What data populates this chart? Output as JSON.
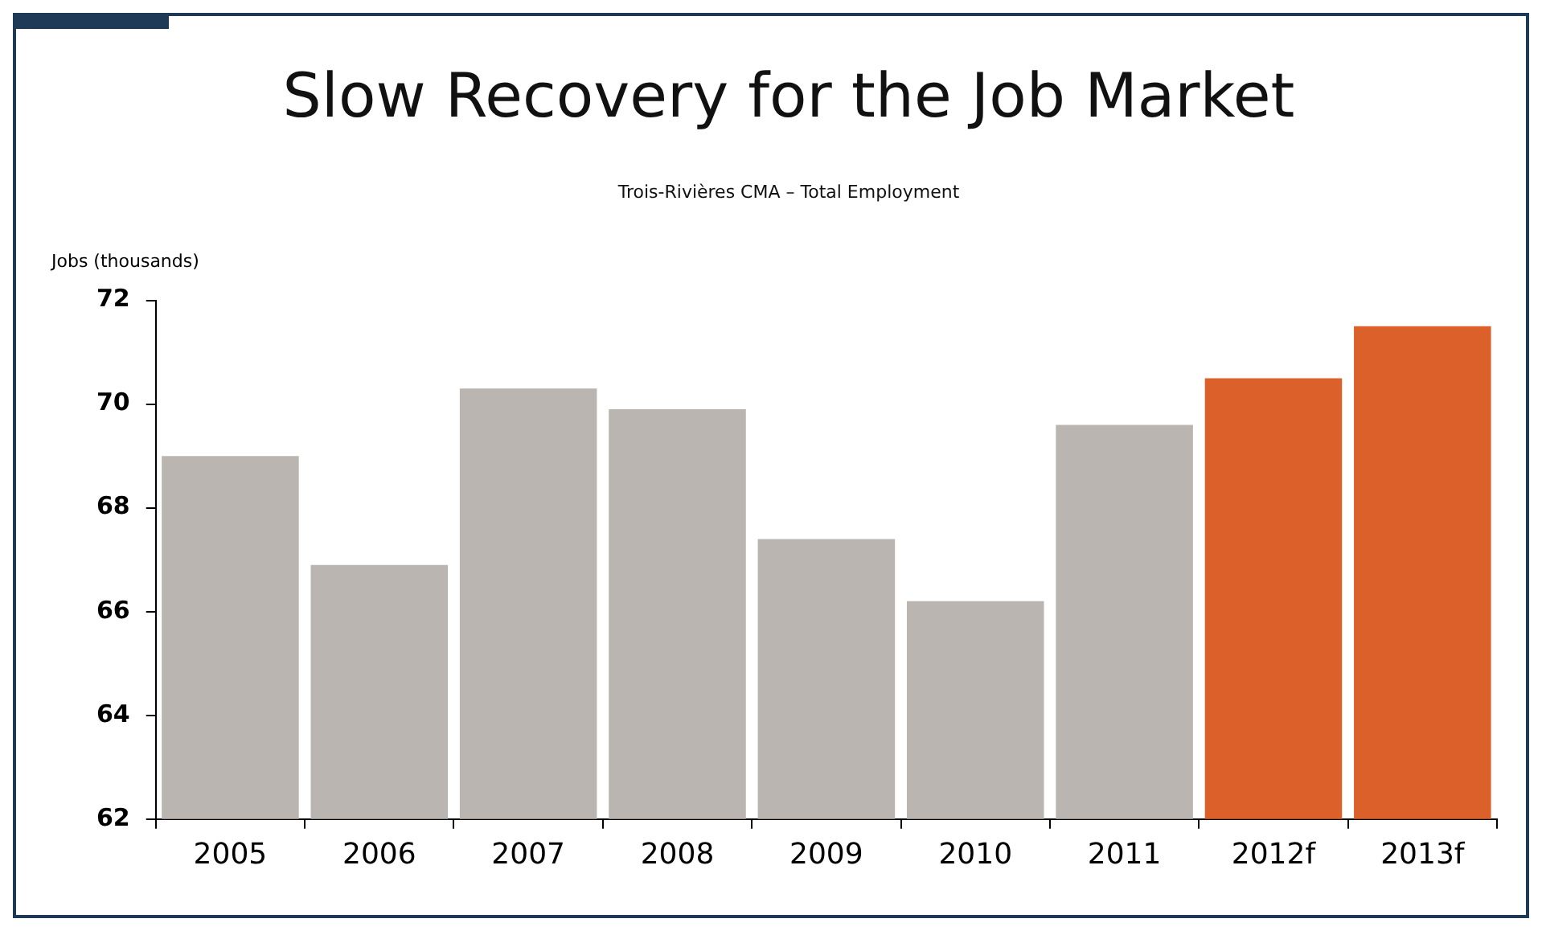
{
  "chart_data": {
    "type": "bar",
    "title": "Slow Recovery for the Job Market",
    "subtitle": "Trois-Rivières CMA – Total Employment",
    "ylabel": "Jobs (thousands)",
    "categories": [
      "2005",
      "2006",
      "2007",
      "2008",
      "2009",
      "2010",
      "2011",
      "2012f",
      "2013f"
    ],
    "values": [
      69.0,
      66.9,
      70.3,
      69.9,
      67.4,
      66.2,
      69.6,
      70.5,
      71.5
    ],
    "colors": [
      "#bab5b0",
      "#bab5b0",
      "#bab5b0",
      "#bab5b0",
      "#bab5b0",
      "#bab5b0",
      "#bab5b0",
      "#dc6029",
      "#dc6029"
    ],
    "ylim": [
      62,
      72
    ],
    "yticks": [
      62,
      64,
      66,
      68,
      70,
      72
    ],
    "grid": false,
    "legend": false
  }
}
